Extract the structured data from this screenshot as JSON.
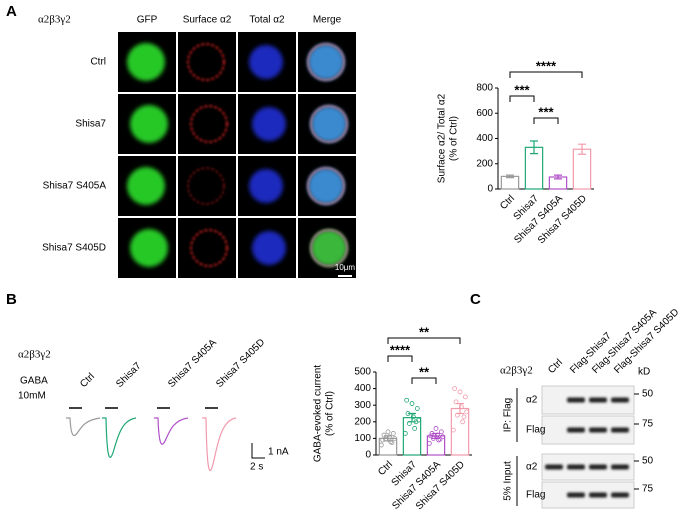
{
  "panel_a": {
    "label": "A",
    "construct": "α2β3γ2",
    "columns": [
      "GFP",
      "Surface α2",
      "Total α2",
      "Merge"
    ],
    "rows": [
      "Ctrl",
      "Shisa7",
      "Shisa7 S405A",
      "Shisa7 S405D"
    ],
    "scale_bar": "10μm",
    "chart": {
      "type": "bar",
      "ylabel": "Surface α2/ Total α2",
      "ylabel_unit": "(% of Ctrl)",
      "categories": [
        "Ctrl",
        "Shisa7",
        "Shisa7 S405A",
        "Shisa7 S405D"
      ],
      "values": [
        100,
        330,
        95,
        315
      ],
      "errors": [
        10,
        50,
        15,
        40
      ],
      "colors": [
        "#9a9a9a",
        "#1fa774",
        "#b04fc8",
        "#f29aac"
      ],
      "ylim": [
        0,
        800
      ],
      "yticks": [
        0,
        200,
        400,
        600,
        800
      ],
      "significance": [
        "***",
        "***",
        "****"
      ]
    }
  },
  "panel_b": {
    "label": "B",
    "construct": "α2β3γ2",
    "stimulus": "GABA",
    "concentration": "10mM",
    "traces": [
      "Ctrl",
      "Shisa7",
      "Shisa7 S405A",
      "Shisa7 S405D"
    ],
    "scale_current": "1 nA",
    "scale_time": "2 s",
    "chart": {
      "type": "bar",
      "ylabel": "GABA-evoked current",
      "ylabel_unit": "(% of  Ctrl)",
      "categories": [
        "Ctrl",
        "Shisa7",
        "Shisa7 S405A",
        "Shisa7 S405D"
      ],
      "values": [
        100,
        225,
        115,
        280
      ],
      "errors": [
        15,
        25,
        15,
        30
      ],
      "points": [
        [
          60,
          80,
          95,
          100,
          110,
          120,
          130,
          140,
          90,
          75
        ],
        [
          130,
          160,
          190,
          210,
          230,
          250,
          280,
          310,
          330,
          200
        ],
        [
          70,
          90,
          100,
          110,
          120,
          130,
          140,
          160,
          115,
          95
        ],
        [
          150,
          200,
          240,
          260,
          290,
          320,
          350,
          380,
          400,
          230
        ]
      ],
      "colors": [
        "#9a9a9a",
        "#1fa774",
        "#b04fc8",
        "#f29aac"
      ],
      "ylim": [
        0,
        500
      ],
      "yticks": [
        0,
        100,
        200,
        300,
        400,
        500
      ],
      "significance": [
        "****",
        "**",
        "**"
      ]
    }
  },
  "panel_c": {
    "label": "C",
    "construct": "α2β3γ2",
    "lanes": [
      "Ctrl",
      "Flag-Shisa7",
      "Flag-Shisa7 S405A",
      "Flag-Shisa7 S405D"
    ],
    "unit": "kD",
    "groups": [
      {
        "label": "IP: Flag",
        "rows": [
          {
            "label": "α2",
            "marker": 50
          },
          {
            "label": "Flag",
            "marker": 75
          }
        ]
      },
      {
        "label": "5% Input",
        "rows": [
          {
            "label": "α2",
            "marker": 50
          },
          {
            "label": "Flag",
            "marker": 75
          }
        ]
      }
    ]
  }
}
